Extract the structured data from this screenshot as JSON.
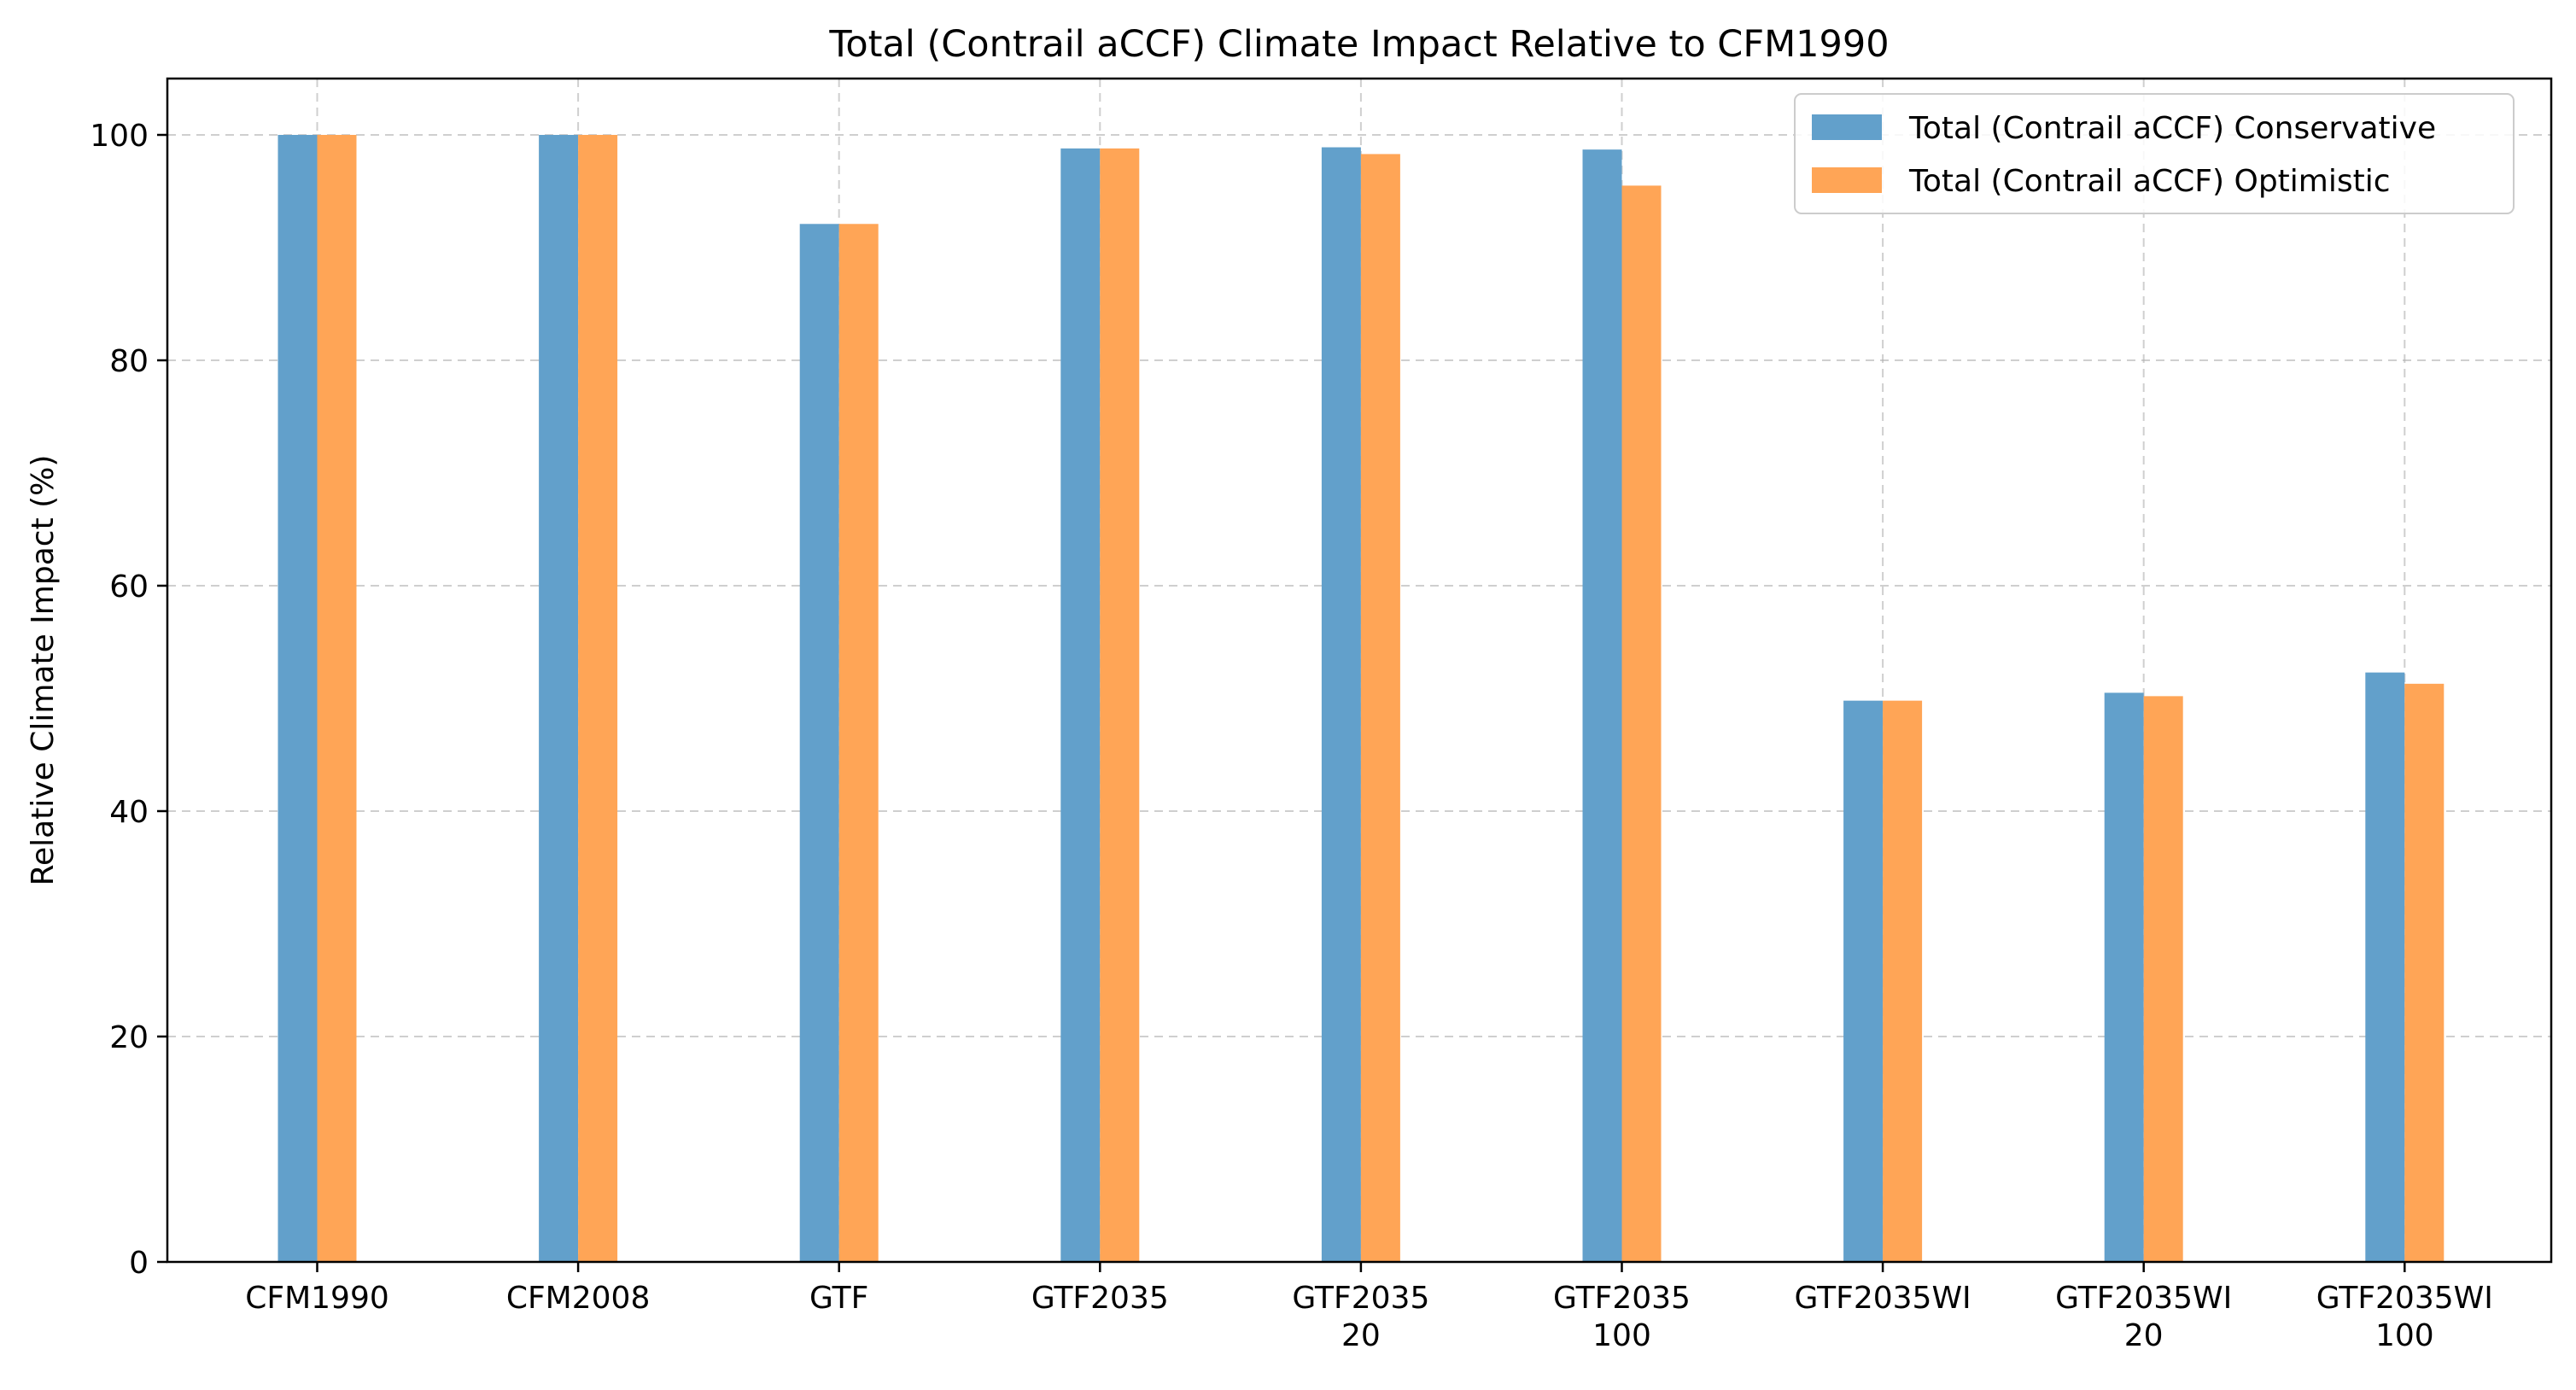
{
  "chart_data": {
    "type": "bar",
    "title": "Total (Contrail aCCF) Climate Impact Relative to CFM1990",
    "xlabel": "",
    "ylabel": "Relative Climate Impact (%)",
    "ylim": [
      0,
      105
    ],
    "yticks": [
      0,
      20,
      40,
      60,
      80,
      100
    ],
    "grid": true,
    "legend_position": "top-right",
    "categories": [
      [
        "CFM1990"
      ],
      [
        "CFM2008"
      ],
      [
        "GTF"
      ],
      [
        "GTF2035"
      ],
      [
        "GTF2035",
        "20"
      ],
      [
        "GTF2035",
        "100"
      ],
      [
        "GTF2035WI"
      ],
      [
        "GTF2035WI",
        "20"
      ],
      [
        "GTF2035WI",
        "100"
      ]
    ],
    "series": [
      {
        "name": "Total (Contrail aCCF) Conservative",
        "color": "#62a0cb",
        "values": [
          100,
          100,
          92.1,
          98.8,
          98.9,
          98.7,
          49.8,
          50.5,
          52.3
        ]
      },
      {
        "name": "Total (Contrail aCCF) Optimistic",
        "color": "#ffa556",
        "values": [
          100,
          100,
          92.1,
          98.8,
          98.3,
          95.5,
          49.8,
          50.2,
          51.3
        ]
      }
    ]
  }
}
